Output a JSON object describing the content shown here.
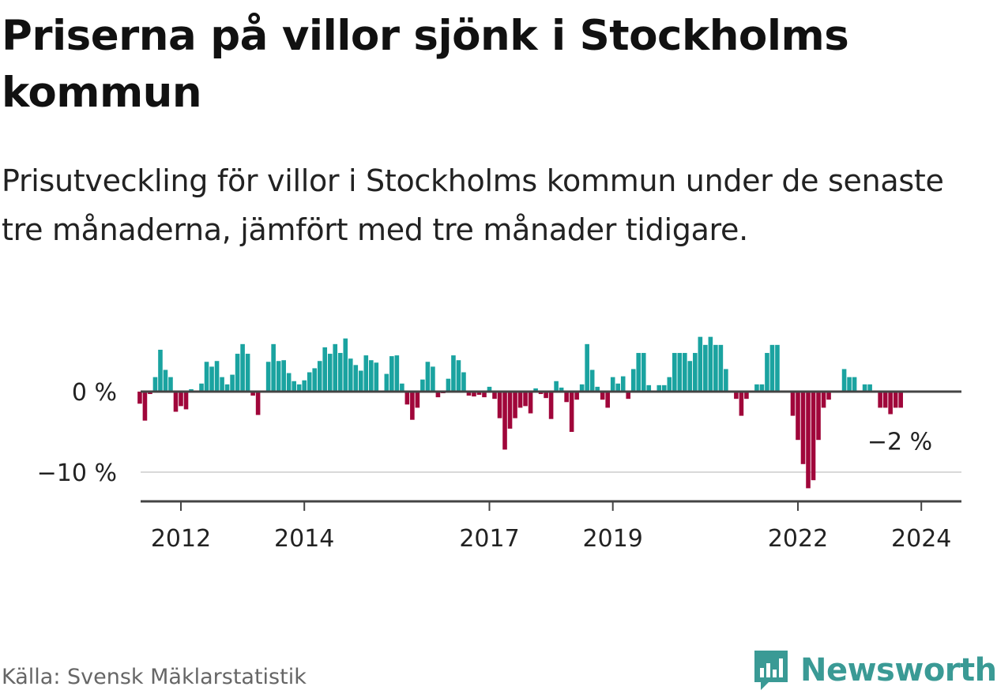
{
  "title": "Priserna på villor sjönk i Stockholms kommun",
  "subtitle": "Prisutveckling för villor i Stockholms kommun under de senaste tre månaderna, jämfört med tre månader tidigare.",
  "source": "Källa: Svensk Mäklarstatistik",
  "brand": "Newsworthy",
  "colors": {
    "positive": "#1aa3a0",
    "negative": "#a0063a",
    "axis": "#444444",
    "grid": "#d9d9d9",
    "brand": "#3a9a95"
  },
  "icons": {
    "logo": "bar-chart-speech-bubble-icon"
  },
  "chart_data": {
    "type": "bar",
    "title": "Priserna på villor sjönk i Stockholms kommun",
    "xlabel": "",
    "ylabel": "",
    "unit": "%",
    "x_start": "2011-05",
    "frequency": "monthly",
    "ylim": [
      -13,
      8
    ],
    "yticks": [
      0,
      -10
    ],
    "ytick_labels": [
      "0 %",
      "−10 %"
    ],
    "xticks": [
      2012,
      2014,
      2017,
      2019,
      2022,
      2024
    ],
    "last_label": "−2 %",
    "values": [
      -1.5,
      -3.6,
      -0.3,
      1.8,
      5.2,
      2.7,
      1.8,
      -2.5,
      -1.8,
      -2.2,
      0.3,
      0.1,
      1.0,
      3.7,
      3.1,
      3.8,
      1.8,
      0.9,
      2.1,
      4.7,
      5.9,
      4.7,
      -0.5,
      -2.9,
      0.1,
      3.7,
      5.9,
      3.8,
      3.9,
      2.3,
      1.3,
      0.9,
      1.4,
      2.4,
      2.9,
      3.8,
      5.5,
      4.7,
      5.9,
      4.8,
      6.6,
      4.1,
      3.3,
      2.6,
      4.5,
      3.9,
      3.6,
      0.0,
      2.2,
      4.4,
      4.5,
      1.0,
      -1.6,
      -3.5,
      -2.0,
      1.5,
      3.7,
      3.1,
      -0.7,
      -0.2,
      1.6,
      4.5,
      3.9,
      2.4,
      -0.5,
      -0.6,
      -0.4,
      -0.7,
      0.6,
      -0.9,
      -3.3,
      -7.2,
      -4.6,
      -3.3,
      -2.0,
      -1.8,
      -2.7,
      0.4,
      -0.3,
      -0.8,
      -3.4,
      1.3,
      0.5,
      -1.3,
      -5.0,
      -1.0,
      0.9,
      5.9,
      2.7,
      0.6,
      -1.0,
      -2.0,
      1.8,
      1.0,
      1.9,
      -0.9,
      2.8,
      4.8,
      4.8,
      0.8,
      0.0,
      0.8,
      0.8,
      1.8,
      4.8,
      4.8,
      4.8,
      3.8,
      4.8,
      6.8,
      5.8,
      6.8,
      5.8,
      5.8,
      2.8,
      0.0,
      -0.9,
      -3.0,
      -0.9,
      0.0,
      0.9,
      0.9,
      4.8,
      5.8,
      5.8,
      0.0,
      0.0,
      -3.0,
      -6.0,
      -9.0,
      -12.0,
      -11.0,
      -6.0,
      -2.0,
      -1.0,
      0.0,
      0.0,
      2.8,
      1.8,
      1.8,
      0.0,
      0.9,
      0.9,
      0.0,
      -2.0,
      -2.0,
      -2.8,
      -2.0,
      -2.0
    ]
  }
}
